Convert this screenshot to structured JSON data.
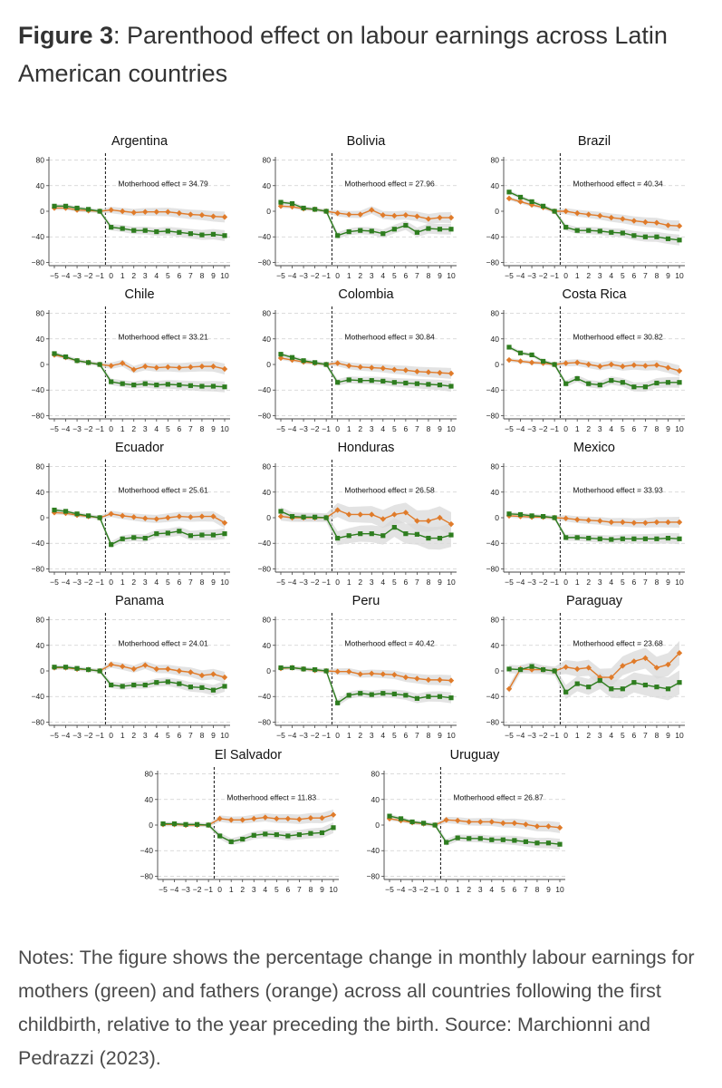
{
  "header": {
    "figure_label": "Figure 3",
    "title_text": ": Parenthood effect on labour earnings across Latin American countries"
  },
  "notes": "Notes: The figure shows the percentage change in monthly labour earnings for mothers (green) and fathers (orange) across all countries following the first childbirth, relative to the year preceding the birth. Source: Marchionni and Pedrazzi (2023).",
  "colors": {
    "mothers": "#2e7d1f",
    "fathers": "#e07b2a",
    "ci_band": "#d9d9d9"
  },
  "chart_data": [
    {
      "type": "line",
      "title": "Argentina",
      "annotation": "Motherhood effect = 34.79",
      "x": [
        -5,
        -4,
        -3,
        -2,
        -1,
        0,
        1,
        2,
        3,
        4,
        5,
        6,
        7,
        8,
        9,
        10
      ],
      "x_tick_labels": [
        "−5",
        "−4",
        "−3",
        "−2",
        "−1",
        "0",
        "1",
        "2",
        "3",
        "4",
        "5",
        "6",
        "7",
        "8",
        "9",
        "10"
      ],
      "ylim": [
        -85,
        85
      ],
      "yticks": [
        -80,
        -40,
        0,
        40,
        80
      ],
      "event_line_x": -0.5,
      "series": [
        {
          "values": [
            8,
            8,
            5,
            3,
            0,
            -25,
            -27,
            -30,
            -30,
            -32,
            -31,
            -33,
            -35,
            -37,
            -36,
            -38
          ]
        },
        {
          "values": [
            5,
            5,
            2,
            1,
            0,
            2,
            0,
            -2,
            -1,
            -1,
            -1,
            -3,
            -5,
            -6,
            -8,
            -9
          ]
        }
      ]
    },
    {
      "type": "line",
      "title": "Bolivia",
      "annotation": "Motherhood effect = 27.96",
      "x": [
        -5,
        -4,
        -3,
        -2,
        -1,
        0,
        1,
        2,
        3,
        4,
        5,
        6,
        7,
        8,
        9,
        10
      ],
      "x_tick_labels": [
        "−5",
        "−4",
        "−3",
        "−2",
        "−1",
        "0",
        "1",
        "2",
        "3",
        "4",
        "5",
        "6",
        "7",
        "8",
        "9",
        "10"
      ],
      "ylim": [
        -85,
        85
      ],
      "yticks": [
        -80,
        -40,
        0,
        40,
        80
      ],
      "event_line_x": -0.5,
      "series": [
        {
          "values": [
            14,
            12,
            5,
            3,
            0,
            -38,
            -32,
            -30,
            -31,
            -35,
            -28,
            -22,
            -33,
            -27,
            -28,
            -28
          ]
        },
        {
          "values": [
            8,
            7,
            4,
            3,
            0,
            -3,
            -5,
            -5,
            2,
            -6,
            -7,
            -6,
            -8,
            -12,
            -10,
            -10
          ]
        }
      ]
    },
    {
      "type": "line",
      "title": "Brazil",
      "annotation": "Motherhood effect = 40.34",
      "x": [
        -5,
        -4,
        -3,
        -2,
        -1,
        0,
        1,
        2,
        3,
        4,
        5,
        6,
        7,
        8,
        9,
        10
      ],
      "x_tick_labels": [
        "−5",
        "−4",
        "−3",
        "−2",
        "−1",
        "0",
        "1",
        "2",
        "3",
        "4",
        "5",
        "6",
        "7",
        "8",
        "9",
        "10"
      ],
      "ylim": [
        -85,
        85
      ],
      "yticks": [
        -80,
        -40,
        0,
        40,
        80
      ],
      "event_line_x": -0.5,
      "series": [
        {
          "values": [
            30,
            22,
            15,
            8,
            0,
            -25,
            -30,
            -30,
            -31,
            -33,
            -34,
            -38,
            -40,
            -40,
            -43,
            -45
          ]
        },
        {
          "values": [
            20,
            15,
            10,
            6,
            0,
            0,
            -3,
            -5,
            -7,
            -10,
            -12,
            -15,
            -17,
            -18,
            -22,
            -23
          ]
        }
      ]
    },
    {
      "type": "line",
      "title": "Chile",
      "annotation": "Motherhood effect = 33.21",
      "x": [
        -5,
        -4,
        -3,
        -2,
        -1,
        0,
        1,
        2,
        3,
        4,
        5,
        6,
        7,
        8,
        9,
        10
      ],
      "x_tick_labels": [
        "−5",
        "−4",
        "−3",
        "−2",
        "−1",
        "0",
        "1",
        "2",
        "3",
        "4",
        "5",
        "6",
        "7",
        "8",
        "9",
        "10"
      ],
      "ylim": [
        -85,
        85
      ],
      "yticks": [
        -80,
        -40,
        0,
        40,
        80
      ],
      "event_line_x": -0.5,
      "series": [
        {
          "values": [
            17,
            12,
            6,
            3,
            0,
            -27,
            -30,
            -32,
            -30,
            -32,
            -31,
            -32,
            -33,
            -34,
            -34,
            -35
          ]
        },
        {
          "values": [
            15,
            11,
            6,
            3,
            0,
            -2,
            2,
            -8,
            -3,
            -5,
            -4,
            -5,
            -4,
            -3,
            -3,
            -7
          ]
        }
      ]
    },
    {
      "type": "line",
      "title": "Colombia",
      "annotation": "Motherhood effect = 30.84",
      "x": [
        -5,
        -4,
        -3,
        -2,
        -1,
        0,
        1,
        2,
        3,
        4,
        5,
        6,
        7,
        8,
        9,
        10
      ],
      "x_tick_labels": [
        "−5",
        "−4",
        "−3",
        "−2",
        "−1",
        "0",
        "1",
        "2",
        "3",
        "4",
        "5",
        "6",
        "7",
        "8",
        "9",
        "10"
      ],
      "ylim": [
        -85,
        85
      ],
      "yticks": [
        -80,
        -40,
        0,
        40,
        80
      ],
      "event_line_x": -0.5,
      "series": [
        {
          "values": [
            16,
            11,
            6,
            3,
            0,
            -28,
            -24,
            -25,
            -25,
            -26,
            -28,
            -29,
            -30,
            -31,
            -32,
            -34
          ]
        },
        {
          "values": [
            10,
            7,
            4,
            2,
            0,
            2,
            -2,
            -4,
            -5,
            -6,
            -8,
            -9,
            -11,
            -12,
            -13,
            -14
          ]
        }
      ]
    },
    {
      "type": "line",
      "title": "Costa Rica",
      "annotation": "Motherhood effect = 30.82",
      "x": [
        -5,
        -4,
        -3,
        -2,
        -1,
        0,
        1,
        2,
        3,
        4,
        5,
        6,
        7,
        8,
        9,
        10
      ],
      "x_tick_labels": [
        "−5",
        "−4",
        "−3",
        "−2",
        "−1",
        "0",
        "1",
        "2",
        "3",
        "4",
        "5",
        "6",
        "7",
        "8",
        "9",
        "10"
      ],
      "ylim": [
        -85,
        85
      ],
      "yticks": [
        -80,
        -40,
        0,
        40,
        80
      ],
      "event_line_x": -0.5,
      "series": [
        {
          "values": [
            27,
            18,
            15,
            5,
            0,
            -30,
            -22,
            -30,
            -32,
            -25,
            -28,
            -35,
            -35,
            -29,
            -28,
            -28
          ]
        },
        {
          "values": [
            7,
            5,
            3,
            2,
            0,
            2,
            3,
            0,
            -3,
            0,
            -3,
            -1,
            -2,
            -1,
            -5,
            -10
          ]
        }
      ]
    },
    {
      "type": "line",
      "title": "Ecuador",
      "annotation": "Motherhood effect = 25.61",
      "x": [
        -5,
        -4,
        -3,
        -2,
        -1,
        0,
        1,
        2,
        3,
        4,
        5,
        6,
        7,
        8,
        9,
        10
      ],
      "x_tick_labels": [
        "−5",
        "−4",
        "−3",
        "−2",
        "−1",
        "0",
        "1",
        "2",
        "3",
        "4",
        "5",
        "6",
        "7",
        "8",
        "9",
        "10"
      ],
      "ylim": [
        -85,
        85
      ],
      "yticks": [
        -80,
        -40,
        0,
        40,
        80
      ],
      "event_line_x": -0.5,
      "series": [
        {
          "values": [
            12,
            10,
            6,
            3,
            0,
            -42,
            -33,
            -31,
            -32,
            -25,
            -24,
            -21,
            -28,
            -27,
            -27,
            -25
          ]
        },
        {
          "values": [
            8,
            7,
            4,
            2,
            0,
            6,
            3,
            1,
            -1,
            -2,
            0,
            2,
            1,
            2,
            2,
            -8
          ]
        }
      ]
    },
    {
      "type": "line",
      "title": "Honduras",
      "annotation": "Motherhood effect = 26.58",
      "x": [
        -5,
        -4,
        -3,
        -2,
        -1,
        0,
        1,
        2,
        3,
        4,
        5,
        6,
        7,
        8,
        9,
        10
      ],
      "x_tick_labels": [
        "−5",
        "−4",
        "−3",
        "−2",
        "−1",
        "0",
        "1",
        "2",
        "3",
        "4",
        "5",
        "6",
        "7",
        "8",
        "9",
        "10"
      ],
      "ylim": [
        -85,
        85
      ],
      "yticks": [
        -80,
        -40,
        0,
        40,
        80
      ],
      "event_line_x": -0.5,
      "series": [
        {
          "values": [
            10,
            2,
            1,
            1,
            0,
            -32,
            -28,
            -25,
            -25,
            -28,
            -15,
            -25,
            -26,
            -32,
            -32,
            -27
          ]
        },
        {
          "values": [
            2,
            0,
            0,
            0,
            0,
            12,
            5,
            5,
            5,
            -2,
            5,
            8,
            -5,
            -5,
            0,
            -10
          ]
        }
      ]
    },
    {
      "type": "line",
      "title": "Mexico",
      "annotation": "Motherhood effect = 33.93",
      "x": [
        -5,
        -4,
        -3,
        -2,
        -1,
        0,
        1,
        2,
        3,
        4,
        5,
        6,
        7,
        8,
        9,
        10
      ],
      "x_tick_labels": [
        "−5",
        "−4",
        "−3",
        "−2",
        "−1",
        "0",
        "1",
        "2",
        "3",
        "4",
        "5",
        "6",
        "7",
        "8",
        "9",
        "10"
      ],
      "ylim": [
        -85,
        85
      ],
      "yticks": [
        -80,
        -40,
        0,
        40,
        80
      ],
      "event_line_x": -0.5,
      "series": [
        {
          "values": [
            6,
            5,
            3,
            2,
            0,
            -31,
            -31,
            -32,
            -33,
            -34,
            -33,
            -33,
            -33,
            -33,
            -32,
            -33
          ]
        },
        {
          "values": [
            3,
            2,
            1,
            1,
            0,
            -1,
            -3,
            -4,
            -5,
            -7,
            -7,
            -8,
            -8,
            -7,
            -7,
            -7
          ]
        }
      ]
    },
    {
      "type": "line",
      "title": "Panama",
      "annotation": "Motherhood effect = 24.01",
      "x": [
        -5,
        -4,
        -3,
        -2,
        -1,
        0,
        1,
        2,
        3,
        4,
        5,
        6,
        7,
        8,
        9,
        10
      ],
      "x_tick_labels": [
        "−5",
        "−4",
        "−3",
        "−2",
        "−1",
        "0",
        "1",
        "2",
        "3",
        "4",
        "5",
        "6",
        "7",
        "8",
        "9",
        "10"
      ],
      "ylim": [
        -85,
        85
      ],
      "yticks": [
        -80,
        -40,
        0,
        40,
        80
      ],
      "event_line_x": -0.5,
      "series": [
        {
          "values": [
            6,
            6,
            4,
            2,
            0,
            -22,
            -24,
            -22,
            -22,
            -18,
            -17,
            -20,
            -25,
            -26,
            -30,
            -24
          ]
        },
        {
          "values": [
            5,
            5,
            3,
            2,
            0,
            10,
            7,
            3,
            9,
            3,
            3,
            0,
            -2,
            -7,
            -5,
            -10
          ]
        }
      ]
    },
    {
      "type": "line",
      "title": "Peru",
      "annotation": "Motherhood effect = 40.42",
      "x": [
        -5,
        -4,
        -3,
        -2,
        -1,
        0,
        1,
        2,
        3,
        4,
        5,
        6,
        7,
        8,
        9,
        10
      ],
      "x_tick_labels": [
        "−5",
        "−4",
        "−3",
        "−2",
        "−1",
        "0",
        "1",
        "2",
        "3",
        "4",
        "5",
        "6",
        "7",
        "8",
        "9",
        "10"
      ],
      "ylim": [
        -85,
        85
      ],
      "yticks": [
        -80,
        -40,
        0,
        40,
        80
      ],
      "event_line_x": -0.5,
      "series": [
        {
          "values": [
            5,
            5,
            3,
            2,
            0,
            -50,
            -38,
            -35,
            -37,
            -35,
            -36,
            -38,
            -43,
            -40,
            -40,
            -42
          ]
        },
        {
          "values": [
            4,
            5,
            3,
            1,
            0,
            -1,
            -1,
            -5,
            -4,
            -5,
            -6,
            -10,
            -12,
            -14,
            -14,
            -15
          ]
        }
      ]
    },
    {
      "type": "line",
      "title": "Paraguay",
      "annotation": "Motherhood effect = 23.68",
      "x": [
        -5,
        -4,
        -3,
        -2,
        -1,
        0,
        1,
        2,
        3,
        4,
        5,
        6,
        7,
        8,
        9,
        10
      ],
      "x_tick_labels": [
        "−5",
        "−4",
        "−3",
        "−2",
        "−1",
        "0",
        "1",
        "2",
        "3",
        "4",
        "5",
        "6",
        "7",
        "8",
        "9",
        "10"
      ],
      "ylim": [
        -85,
        85
      ],
      "yticks": [
        -80,
        -40,
        0,
        40,
        80
      ],
      "event_line_x": -0.5,
      "series": [
        {
          "values": [
            3,
            2,
            7,
            2,
            0,
            -33,
            -20,
            -25,
            -15,
            -28,
            -28,
            -18,
            -22,
            -25,
            -28,
            -18
          ]
        },
        {
          "values": [
            -28,
            3,
            2,
            2,
            0,
            6,
            3,
            5,
            -10,
            -10,
            8,
            15,
            20,
            5,
            10,
            28
          ]
        }
      ]
    },
    {
      "type": "line",
      "title": "El Salvador",
      "annotation": "Motherhood effect = 11.83",
      "x": [
        -5,
        -4,
        -3,
        -2,
        -1,
        0,
        1,
        2,
        3,
        4,
        5,
        6,
        7,
        8,
        9,
        10
      ],
      "x_tick_labels": [
        "−5",
        "−4",
        "−3",
        "−2",
        "−1",
        "0",
        "1",
        "2",
        "3",
        "4",
        "5",
        "6",
        "7",
        "8",
        "9",
        "10"
      ],
      "ylim": [
        -85,
        85
      ],
      "yticks": [
        -80,
        -40,
        0,
        40,
        80
      ],
      "event_line_x": -0.5,
      "series": [
        {
          "values": [
            2,
            2,
            1,
            1,
            0,
            -17,
            -26,
            -22,
            -16,
            -14,
            -15,
            -17,
            -15,
            -13,
            -12,
            -4
          ]
        },
        {
          "values": [
            1,
            1,
            0,
            0,
            0,
            10,
            8,
            8,
            10,
            12,
            10,
            10,
            9,
            11,
            11,
            16
          ]
        }
      ]
    },
    {
      "type": "line",
      "title": "Uruguay",
      "annotation": "Motherhood effect = 26.87",
      "x": [
        -5,
        -4,
        -3,
        -2,
        -1,
        0,
        1,
        2,
        3,
        4,
        5,
        6,
        7,
        8,
        9,
        10
      ],
      "x_tick_labels": [
        "−5",
        "−4",
        "−3",
        "−2",
        "−1",
        "0",
        "1",
        "2",
        "3",
        "4",
        "5",
        "6",
        "7",
        "8",
        "9",
        "10"
      ],
      "ylim": [
        -85,
        85
      ],
      "yticks": [
        -80,
        -40,
        0,
        40,
        80
      ],
      "event_line_x": -0.5,
      "series": [
        {
          "values": [
            14,
            10,
            5,
            3,
            0,
            -27,
            -20,
            -21,
            -21,
            -23,
            -23,
            -24,
            -26,
            -28,
            -28,
            -30
          ]
        },
        {
          "values": [
            10,
            7,
            4,
            2,
            0,
            8,
            7,
            5,
            5,
            5,
            3,
            3,
            1,
            -2,
            -2,
            -4
          ]
        }
      ]
    }
  ]
}
